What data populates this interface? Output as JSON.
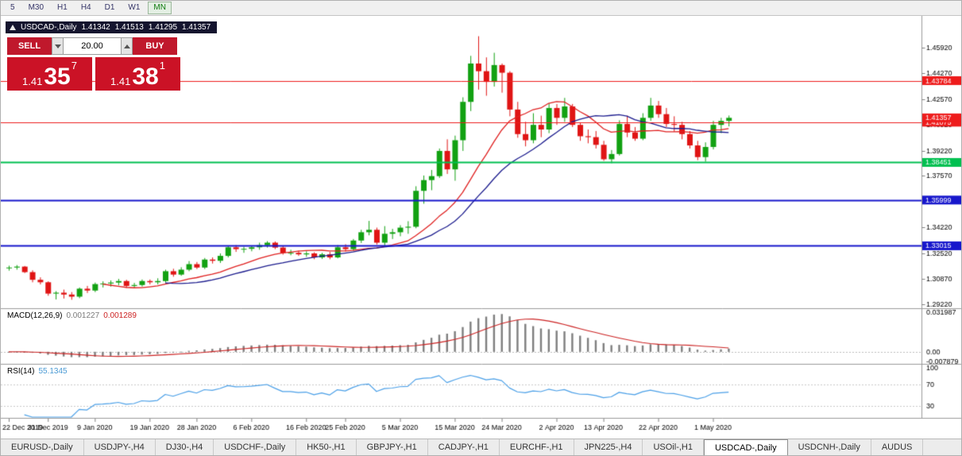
{
  "toolbar": {
    "timeframes": [
      "5",
      "M30",
      "H1",
      "H4",
      "D1",
      "W1",
      "MN"
    ],
    "active": "MN"
  },
  "ohlc_header": {
    "symbol": "USDCAD-,Daily",
    "open": "1.41342",
    "high": "1.41513",
    "low": "1.41295",
    "close": "1.41357"
  },
  "trade_panel": {
    "sell_label": "SELL",
    "buy_label": "BUY",
    "volume": "20.00",
    "sell_price": {
      "base": "1.41",
      "pips": "35",
      "pt": "7"
    },
    "buy_price": {
      "base": "1.41",
      "pips": "38",
      "pt": "1"
    },
    "accent_color": "#cb1226"
  },
  "indicator_labels": {
    "macd_name": "MACD(12,26,9)",
    "macd_main_value": "0.001227",
    "macd_signal_value": "0.001289",
    "rsi_name": "RSI(14)",
    "rsi_value": "55.1345"
  },
  "tabs": {
    "items": [
      "EURUSD-,Daily",
      "USDJPY-,H4",
      "DJ30-,H4",
      "USDCHF-,Daily",
      "HK50-,H1",
      "GBPJPY-,H1",
      "CADJPY-,H1",
      "EURCHF-,H1",
      "JPN225-,H4",
      "USOil-,H1",
      "USDCAD-,Daily",
      "USDCNH-,Daily",
      "AUDUS"
    ],
    "active": "USDCAD-,Daily"
  },
  "chart_data": {
    "type": "candlestick",
    "title": "USDCAD-,Daily",
    "symbol": "USDCAD",
    "timeframe": "Daily",
    "price_axis": {
      "ticks": [
        "1.45920",
        "1.44270",
        "1.42570",
        "1.40920",
        "1.39220",
        "1.37570",
        "1.35870",
        "1.34220",
        "1.32520",
        "1.30870",
        "1.29220"
      ],
      "range": [
        1.2905,
        1.4785
      ]
    },
    "x_axis": {
      "labels": [
        "22 Dec 2019",
        "31 Dec 2019",
        "9 Jan 2020",
        "19 Jan 2020",
        "28 Jan 2020",
        "6 Feb 2020",
        "16 Feb 2020",
        "25 Feb 2020",
        "5 Mar 2020",
        "15 Mar 2020",
        "24 Mar 2020",
        "2 Apr 2020",
        "13 Apr 2020",
        "22 Apr 2020",
        "1 May 2020"
      ],
      "label_indices": [
        0,
        5,
        11,
        18,
        24,
        31,
        38,
        43,
        50,
        57,
        63,
        70,
        76,
        83,
        90
      ]
    },
    "candles": [
      [
        1.3155,
        1.3172,
        1.314,
        1.316
      ],
      [
        1.316,
        1.3176,
        1.3146,
        1.3166
      ],
      [
        1.3166,
        1.317,
        1.3124,
        1.313
      ],
      [
        1.313,
        1.3142,
        1.3064,
        1.308
      ],
      [
        1.308,
        1.3096,
        1.305,
        1.3064
      ],
      [
        1.3064,
        1.307,
        1.2976,
        1.299
      ],
      [
        1.299,
        1.3006,
        1.2952,
        1.2996
      ],
      [
        1.2996,
        1.3016,
        1.2958,
        1.2984
      ],
      [
        1.2984,
        1.3,
        1.295,
        1.297
      ],
      [
        1.297,
        1.303,
        1.296,
        1.3022
      ],
      [
        1.3022,
        1.304,
        1.2994,
        1.301
      ],
      [
        1.301,
        1.3062,
        1.3,
        1.3052
      ],
      [
        1.3052,
        1.307,
        1.303,
        1.3056
      ],
      [
        1.3056,
        1.3076,
        1.3036,
        1.3062
      ],
      [
        1.3062,
        1.3086,
        1.3044,
        1.3072
      ],
      [
        1.3072,
        1.308,
        1.3028,
        1.304
      ],
      [
        1.304,
        1.306,
        1.3024,
        1.3046
      ],
      [
        1.3046,
        1.3082,
        1.3036,
        1.3072
      ],
      [
        1.3072,
        1.3082,
        1.305,
        1.3064
      ],
      [
        1.3064,
        1.309,
        1.305,
        1.3072
      ],
      [
        1.3072,
        1.3146,
        1.3062,
        1.3136
      ],
      [
        1.3136,
        1.3152,
        1.31,
        1.3114
      ],
      [
        1.3114,
        1.3162,
        1.3106,
        1.3146
      ],
      [
        1.3146,
        1.3202,
        1.3136,
        1.3182
      ],
      [
        1.3182,
        1.3196,
        1.315,
        1.316
      ],
      [
        1.316,
        1.3222,
        1.315,
        1.3212
      ],
      [
        1.3212,
        1.3226,
        1.3186,
        1.3204
      ],
      [
        1.3204,
        1.3252,
        1.319,
        1.3236
      ],
      [
        1.3236,
        1.3302,
        1.3226,
        1.3292
      ],
      [
        1.3292,
        1.3306,
        1.3262,
        1.328
      ],
      [
        1.328,
        1.3296,
        1.3256,
        1.3282
      ],
      [
        1.3282,
        1.3302,
        1.3266,
        1.3292
      ],
      [
        1.3292,
        1.3322,
        1.3276,
        1.3306
      ],
      [
        1.3306,
        1.3332,
        1.329,
        1.3322
      ],
      [
        1.3322,
        1.333,
        1.328,
        1.329
      ],
      [
        1.329,
        1.33,
        1.3244,
        1.3256
      ],
      [
        1.3256,
        1.3276,
        1.324,
        1.3256
      ],
      [
        1.3256,
        1.327,
        1.3236,
        1.3246
      ],
      [
        1.3246,
        1.3266,
        1.323,
        1.3252
      ],
      [
        1.3252,
        1.326,
        1.3214,
        1.3226
      ],
      [
        1.3226,
        1.3256,
        1.3216,
        1.3246
      ],
      [
        1.3246,
        1.3262,
        1.3214,
        1.3226
      ],
      [
        1.3226,
        1.3306,
        1.322,
        1.3292
      ],
      [
        1.3292,
        1.3312,
        1.3264,
        1.328
      ],
      [
        1.328,
        1.3346,
        1.327,
        1.3336
      ],
      [
        1.3336,
        1.3406,
        1.332,
        1.339
      ],
      [
        1.339,
        1.3464,
        1.337,
        1.3406
      ],
      [
        1.3406,
        1.342,
        1.331,
        1.3322
      ],
      [
        1.3322,
        1.343,
        1.3304,
        1.338
      ],
      [
        1.338,
        1.3412,
        1.3346,
        1.339
      ],
      [
        1.339,
        1.3436,
        1.3364,
        1.342
      ],
      [
        1.342,
        1.3462,
        1.338,
        1.3426
      ],
      [
        1.3426,
        1.369,
        1.3416,
        1.366
      ],
      [
        1.366,
        1.376,
        1.3576,
        1.373
      ],
      [
        1.373,
        1.3796,
        1.3664,
        1.3756
      ],
      [
        1.3756,
        1.3936,
        1.3744,
        1.392
      ],
      [
        1.392,
        1.3996,
        1.377,
        1.38
      ],
      [
        1.38,
        1.402,
        1.3726,
        1.399
      ],
      [
        1.399,
        1.427,
        1.392,
        1.424
      ],
      [
        1.424,
        1.454,
        1.418,
        1.449
      ],
      [
        1.449,
        1.4668,
        1.432,
        1.444
      ],
      [
        1.444,
        1.453,
        1.428,
        1.437
      ],
      [
        1.437,
        1.456,
        1.434,
        1.448
      ],
      [
        1.448,
        1.449,
        1.43,
        1.443
      ],
      [
        1.443,
        1.444,
        1.4146,
        1.419
      ],
      [
        1.419,
        1.424,
        1.4006,
        1.403
      ],
      [
        1.403,
        1.411,
        1.395,
        1.399
      ],
      [
        1.399,
        1.4166,
        1.397,
        1.409
      ],
      [
        1.409,
        1.415,
        1.401,
        1.406
      ],
      [
        1.406,
        1.423,
        1.4036,
        1.42
      ],
      [
        1.42,
        1.4226,
        1.409,
        1.4136
      ],
      [
        1.4136,
        1.4266,
        1.411,
        1.421
      ],
      [
        1.421,
        1.4226,
        1.4076,
        1.409
      ],
      [
        1.409,
        1.4106,
        1.3986,
        1.4016
      ],
      [
        1.4016,
        1.406,
        1.397,
        1.401
      ],
      [
        1.401,
        1.405,
        1.3936,
        1.396
      ],
      [
        1.396,
        1.3986,
        1.3856,
        1.3866
      ],
      [
        1.3866,
        1.3926,
        1.384,
        1.39
      ],
      [
        1.39,
        1.412,
        1.389,
        1.4096
      ],
      [
        1.4096,
        1.415,
        1.401,
        1.404
      ],
      [
        1.404,
        1.4076,
        1.3986,
        1.4
      ],
      [
        1.4,
        1.4166,
        1.399,
        1.4136
      ],
      [
        1.4136,
        1.4266,
        1.4116,
        1.4216
      ],
      [
        1.4216,
        1.4246,
        1.4136,
        1.416
      ],
      [
        1.416,
        1.42,
        1.4076,
        1.4096
      ],
      [
        1.4096,
        1.4146,
        1.4046,
        1.409
      ],
      [
        1.409,
        1.411,
        1.3996,
        1.403
      ],
      [
        1.403,
        1.405,
        1.3936,
        1.3956
      ],
      [
        1.3956,
        1.3986,
        1.386,
        1.388
      ],
      [
        1.388,
        1.3976,
        1.385,
        1.3946
      ],
      [
        1.3946,
        1.4116,
        1.393,
        1.409
      ],
      [
        1.409,
        1.4136,
        1.4036,
        1.4116
      ],
      [
        1.4116,
        1.4151,
        1.408,
        1.4136
      ]
    ],
    "overlays": {
      "ma_fast": {
        "type": "sma",
        "period": 13,
        "color": "#e02020"
      },
      "ma_slow": {
        "type": "sma",
        "period": 21,
        "color": "#1c1c8e"
      }
    },
    "h_lines": [
      {
        "value": 1.43784,
        "label": "1.43784",
        "color": "#ee1c1c",
        "width": 1
      },
      {
        "value": 1.41075,
        "label": "1.41075",
        "color": "#ee1c1c",
        "width": 1
      },
      {
        "value": 1.38451,
        "label": "1.38451",
        "color": "#00c050",
        "width": 2
      },
      {
        "value": 1.35999,
        "label": "1.35999",
        "color": "#1717cc",
        "width": 2
      },
      {
        "value": 1.33015,
        "label": "1.33015",
        "color": "#1717cc",
        "width": 2
      }
    ],
    "current_price_tag": {
      "value": 1.41357,
      "label": "1.41357",
      "color": "#ee1c1c"
    },
    "macd": {
      "params": [
        12,
        26,
        9
      ],
      "hist_color": "#7f7f7f",
      "signal_color": "#cc2222",
      "range": [
        -0.0085,
        0.0335
      ],
      "axis_labels": [
        {
          "text": "0.031987",
          "value": 0.031987
        },
        {
          "text": "0.00",
          "value": 0.0
        },
        {
          "text": "-0.007879",
          "value": -0.007879
        }
      ]
    },
    "rsi": {
      "period": 14,
      "color": "#4ba0e8",
      "range": [
        10,
        105
      ],
      "levels": [
        70,
        30
      ],
      "axis_labels": [
        {
          "text": "100",
          "value": 100
        },
        {
          "text": "70",
          "value": 70
        },
        {
          "text": "30",
          "value": 30
        }
      ]
    },
    "colors": {
      "up": "#12a112",
      "down": "#e01414",
      "background": "#ffffff",
      "axis_text": "#000000",
      "separator": "#9a9a9a"
    }
  }
}
